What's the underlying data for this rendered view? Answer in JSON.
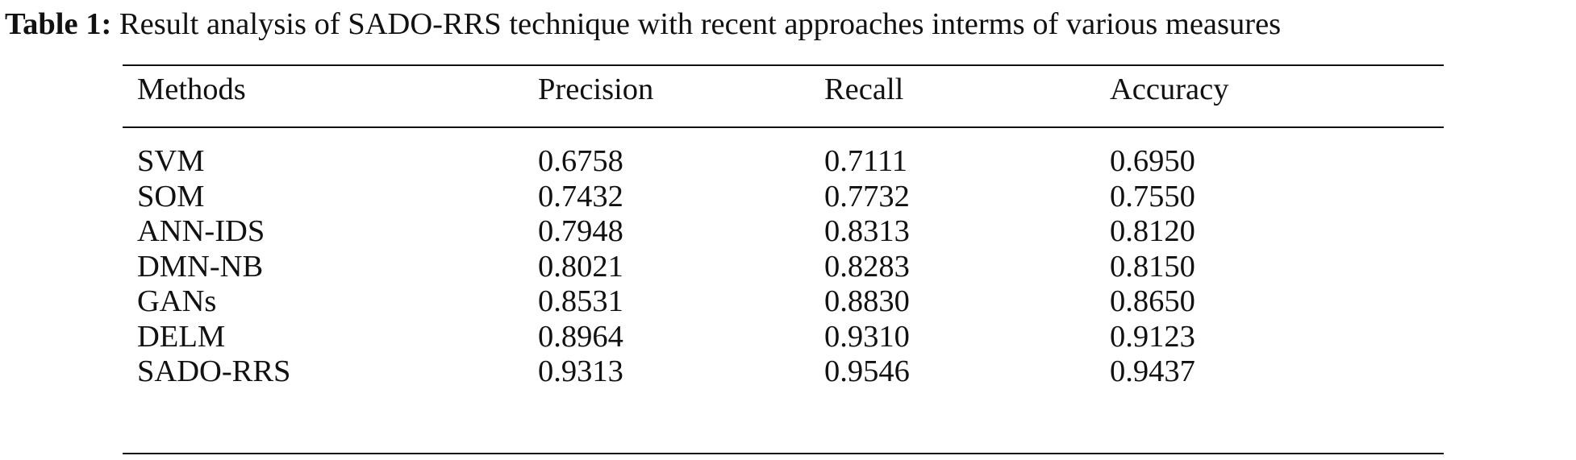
{
  "caption": {
    "label": "Table 1:",
    "text": "Result analysis of SADO-RRS technique with recent approaches interms of various measures"
  },
  "table": {
    "headers": [
      "Methods",
      "Precision",
      "Recall",
      "Accuracy"
    ],
    "rows": [
      [
        "SVM",
        "0.6758",
        "0.7111",
        "0.6950"
      ],
      [
        "SOM",
        "0.7432",
        "0.7732",
        "0.7550"
      ],
      [
        "ANN-IDS",
        "0.7948",
        "0.8313",
        "0.8120"
      ],
      [
        "DMN-NB",
        "0.8021",
        "0.8283",
        "0.8150"
      ],
      [
        "GANs",
        "0.8531",
        "0.8830",
        "0.8650"
      ],
      [
        "DELM",
        "0.8964",
        "0.9310",
        "0.9123"
      ],
      [
        "SADO-RRS",
        "0.9313",
        "0.9546",
        "0.9437"
      ]
    ]
  }
}
